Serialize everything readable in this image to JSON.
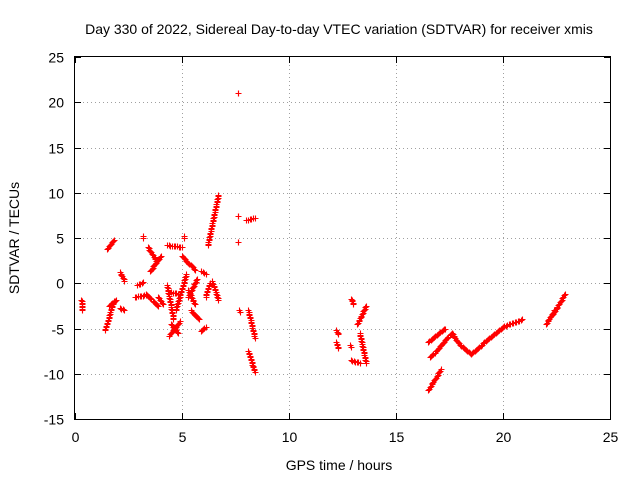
{
  "chart_data": {
    "type": "scatter",
    "title": "Day 330 of 2022, Sidereal Day-to-day VTEC variation (SDTVAR) for receiver xmis",
    "xlabel": "GPS time / hours",
    "ylabel": "SDTVAR / TECUs",
    "xlim": [
      0,
      25
    ],
    "ylim": [
      -15,
      25
    ],
    "xticks": [
      "0",
      "5",
      "10",
      "15",
      "20",
      "25"
    ],
    "yticks": [
      "-15",
      "-10",
      "-5",
      "0",
      "5",
      "10",
      "15",
      "20",
      "25"
    ],
    "grid": true,
    "marker": "+",
    "color": "#ff0000",
    "series": [
      {
        "name": "SDTVAR",
        "segments": [
          {
            "x0": 0.3,
            "y0": -1.8,
            "x1": 0.35,
            "y1": -3.0
          },
          {
            "x0": 1.4,
            "y0": -5.2,
            "x1": 1.8,
            "y1": -2.0
          },
          {
            "x0": 1.5,
            "y0": 3.8,
            "x1": 1.8,
            "y1": 4.8
          },
          {
            "x0": 1.6,
            "y0": -2.5,
            "x1": 1.9,
            "y1": -1.8
          },
          {
            "x0": 2.1,
            "y0": -2.7,
            "x1": 2.3,
            "y1": -3.0
          },
          {
            "x0": 2.1,
            "y0": 1.2,
            "x1": 2.3,
            "y1": 0.3
          },
          {
            "x0": 2.8,
            "y0": -1.5,
            "x1": 3.3,
            "y1": -1.3
          },
          {
            "x0": 2.9,
            "y0": -0.2,
            "x1": 3.2,
            "y1": 0.1
          },
          {
            "x0": 3.2,
            "y0": 5.2,
            "x1": 3.2,
            "y1": 5.0
          },
          {
            "x0": 3.3,
            "y0": -1.2,
            "x1": 3.9,
            "y1": -2.5
          },
          {
            "x0": 3.4,
            "y0": 4.0,
            "x1": 3.8,
            "y1": 2.5
          },
          {
            "x0": 3.5,
            "y0": 1.3,
            "x1": 4.0,
            "y1": 3.0
          },
          {
            "x0": 3.9,
            "y0": -1.5,
            "x1": 4.1,
            "y1": -2.3
          },
          {
            "x0": 4.3,
            "y0": -0.2,
            "x1": 4.6,
            "y1": -4.0
          },
          {
            "x0": 4.4,
            "y0": -5.8,
            "x1": 4.9,
            "y1": -4.2
          },
          {
            "x0": 4.5,
            "y0": -1.0,
            "x1": 4.9,
            "y1": -1.2
          },
          {
            "x0": 4.3,
            "y0": 4.2,
            "x1": 5.0,
            "y1": 4.0
          },
          {
            "x0": 4.5,
            "y0": -4.5,
            "x1": 4.8,
            "y1": -5.5
          },
          {
            "x0": 4.7,
            "y0": -3.0,
            "x1": 5.2,
            "y1": 1.0
          },
          {
            "x0": 5.0,
            "y0": 3.0,
            "x1": 5.6,
            "y1": 1.5
          },
          {
            "x0": 5.1,
            "y0": 5.2,
            "x1": 5.1,
            "y1": 5.0
          },
          {
            "x0": 5.3,
            "y0": -0.8,
            "x1": 5.6,
            "y1": -2.3
          },
          {
            "x0": 5.3,
            "y0": -1.5,
            "x1": 5.7,
            "y1": 0.5
          },
          {
            "x0": 5.4,
            "y0": -3.0,
            "x1": 5.8,
            "y1": -4.0
          },
          {
            "x0": 5.9,
            "y0": -5.3,
            "x1": 6.1,
            "y1": -4.8
          },
          {
            "x0": 5.9,
            "y0": 1.3,
            "x1": 6.1,
            "y1": 1.0
          },
          {
            "x0": 6.1,
            "y0": -1.5,
            "x1": 6.3,
            "y1": 0.0
          },
          {
            "x0": 6.2,
            "y0": 4.2,
            "x1": 6.7,
            "y1": 9.8
          },
          {
            "x0": 6.4,
            "y0": 0.2,
            "x1": 6.7,
            "y1": -1.8
          },
          {
            "x0": 7.6,
            "y0": 21.0,
            "x1": 7.6,
            "y1": 21.0
          },
          {
            "x0": 7.6,
            "y0": 7.4,
            "x1": 7.6,
            "y1": 7.4
          },
          {
            "x0": 7.6,
            "y0": 4.6,
            "x1": 7.6,
            "y1": 4.6
          },
          {
            "x0": 7.65,
            "y0": -3.0,
            "x1": 7.7,
            "y1": -3.2
          },
          {
            "x0": 8.0,
            "y0": 7.0,
            "x1": 8.4,
            "y1": 7.2
          },
          {
            "x0": 8.1,
            "y0": -3.0,
            "x1": 8.4,
            "y1": -6.0
          },
          {
            "x0": 8.1,
            "y0": -7.5,
            "x1": 8.4,
            "y1": -9.8
          },
          {
            "x0": 12.2,
            "y0": -5.2,
            "x1": 12.3,
            "y1": -5.6
          },
          {
            "x0": 12.2,
            "y0": -6.5,
            "x1": 12.3,
            "y1": -7.2
          },
          {
            "x0": 12.9,
            "y0": -1.7,
            "x1": 13.0,
            "y1": -2.3
          },
          {
            "x0": 12.85,
            "y0": -6.8,
            "x1": 12.9,
            "y1": -7.0
          },
          {
            "x0": 12.9,
            "y0": -8.5,
            "x1": 13.3,
            "y1": -8.8
          },
          {
            "x0": 13.2,
            "y0": -4.5,
            "x1": 13.6,
            "y1": -2.5
          },
          {
            "x0": 13.3,
            "y0": -5.5,
            "x1": 13.6,
            "y1": -8.8
          },
          {
            "x0": 16.5,
            "y0": -11.8,
            "x1": 17.1,
            "y1": -9.5
          },
          {
            "x0": 16.5,
            "y0": -6.5,
            "x1": 17.3,
            "y1": -5.0
          },
          {
            "x0": 16.6,
            "y0": -8.2,
            "x1": 17.6,
            "y1": -5.5
          },
          {
            "x0": 17.6,
            "y0": -5.5,
            "x1": 18.0,
            "y1": -6.8
          },
          {
            "x0": 18.0,
            "y0": -6.8,
            "x1": 18.5,
            "y1": -7.8
          },
          {
            "x0": 18.5,
            "y0": -7.8,
            "x1": 19.3,
            "y1": -6.2
          },
          {
            "x0": 19.3,
            "y0": -6.2,
            "x1": 20.0,
            "y1": -4.8
          },
          {
            "x0": 20.0,
            "y0": -4.8,
            "x1": 20.9,
            "y1": -4.0
          },
          {
            "x0": 22.0,
            "y0": -4.5,
            "x1": 22.4,
            "y1": -3.0
          },
          {
            "x0": 22.3,
            "y0": -3.5,
            "x1": 22.9,
            "y1": -1.2
          }
        ]
      }
    ]
  }
}
